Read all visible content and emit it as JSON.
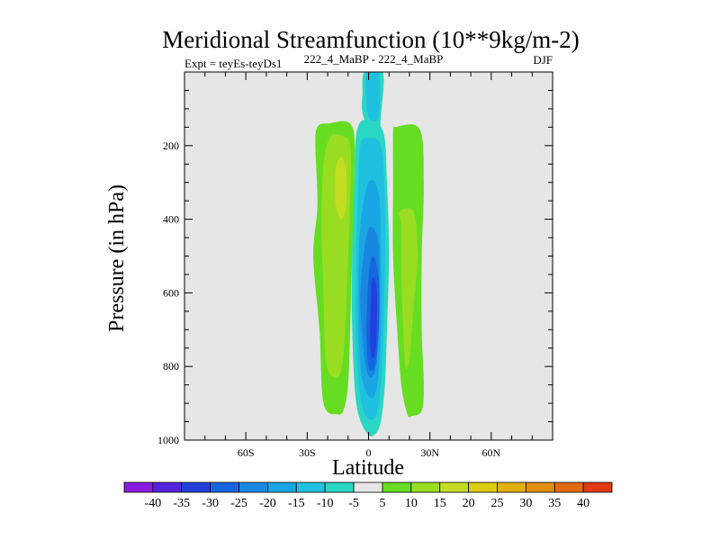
{
  "chart_data": {
    "type": "contour",
    "title": "Meridional Streamfunction (10**9kg/m-2)",
    "subtitle_left": "Expt = teyEs-teyDs1",
    "subtitle_center": "222_4_MaBP - 222_4_MaBP",
    "subtitle_right": "DJF",
    "xlabel": "Latitude",
    "ylabel": "Pressure (in hPa)",
    "xlim": [
      -90,
      90
    ],
    "ylim": [
      1000,
      0
    ],
    "x_ticks": [
      -60,
      -30,
      0,
      30,
      60
    ],
    "x_tick_labels": [
      "60S",
      "30S",
      "0",
      "30N",
      "60N"
    ],
    "y_ticks": [
      200,
      400,
      600,
      800,
      1000
    ],
    "y_tick_labels": [
      "200",
      "400",
      "600",
      "800",
      "1000"
    ],
    "colorbar": {
      "levels": [
        -40,
        -35,
        -30,
        -25,
        -20,
        -15,
        -10,
        -5,
        5,
        10,
        15,
        20,
        25,
        30,
        35,
        40
      ],
      "labels": [
        "-40",
        "-35",
        "-30",
        "-25",
        "-20",
        "-15",
        "-10",
        "-5",
        "5",
        "10",
        "15",
        "20",
        "25",
        "30",
        "35",
        "40"
      ],
      "colors": [
        "#8a1be0",
        "#5522dd",
        "#2340dd",
        "#1565dd",
        "#1887e0",
        "#1aa6e2",
        "#20c0e0",
        "#2ad6c4",
        "#e6e6e6",
        "#66dd22",
        "#99dd22",
        "#c3dd22",
        "#dccc10",
        "#e0b010",
        "#e08f10",
        "#e06a10",
        "#e03a10"
      ]
    },
    "regions": [
      {
        "name": "sh-positive-cell",
        "level_index": 9,
        "points": [
          [
            -20,
            140
          ],
          [
            -8,
            148
          ],
          [
            -7,
            300
          ],
          [
            -8,
            500
          ],
          [
            -9,
            700
          ],
          [
            -10,
            850
          ],
          [
            -12,
            915
          ],
          [
            -15,
            930
          ],
          [
            -22,
            900
          ],
          [
            -24,
            700
          ],
          [
            -27,
            500
          ],
          [
            -25,
            360
          ],
          [
            -26,
            200
          ],
          [
            -25,
            150
          ]
        ]
      },
      {
        "name": "sh-positive-core",
        "level_index": 10,
        "points": [
          [
            -15,
            170
          ],
          [
            -9,
            200
          ],
          [
            -9,
            350
          ],
          [
            -10,
            500
          ],
          [
            -11,
            650
          ],
          [
            -13,
            800
          ],
          [
            -17,
            830
          ],
          [
            -21,
            780
          ],
          [
            -22,
            600
          ],
          [
            -23,
            420
          ],
          [
            -22,
            250
          ],
          [
            -19,
            180
          ]
        ]
      },
      {
        "name": "sh-positive-max",
        "level_index": 11,
        "points": [
          [
            -13,
            230
          ],
          [
            -11,
            270
          ],
          [
            -11,
            360
          ],
          [
            -13,
            400
          ],
          [
            -16,
            360
          ],
          [
            -16,
            260
          ]
        ]
      },
      {
        "name": "nh-positive-cell",
        "level_index": 9,
        "points": [
          [
            13,
            150
          ],
          [
            25,
            155
          ],
          [
            27,
            300
          ],
          [
            26,
            500
          ],
          [
            26,
            700
          ],
          [
            27,
            850
          ],
          [
            26,
            920
          ],
          [
            21,
            935
          ],
          [
            19,
            930
          ],
          [
            16,
            850
          ],
          [
            14,
            700
          ],
          [
            12,
            500
          ],
          [
            12,
            300
          ],
          [
            12,
            160
          ]
        ]
      },
      {
        "name": "nh-positive-core",
        "level_index": 10,
        "points": [
          [
            15,
            380
          ],
          [
            22,
            380
          ],
          [
            24,
            500
          ],
          [
            22,
            640
          ],
          [
            20,
            780
          ],
          [
            18,
            800
          ],
          [
            17,
            700
          ],
          [
            16,
            550
          ],
          [
            16,
            420
          ]
        ]
      },
      {
        "name": "upper-tongue",
        "level_index": 7,
        "points": [
          [
            -2,
            0
          ],
          [
            7,
            0
          ],
          [
            6,
            120
          ],
          [
            5,
            160
          ],
          [
            0,
            150
          ],
          [
            -3,
            110
          ],
          [
            -3,
            60
          ]
        ]
      },
      {
        "name": "upper-tongue-core",
        "level_index": 6,
        "points": [
          [
            -1,
            0
          ],
          [
            5,
            0
          ],
          [
            5,
            120
          ],
          [
            1,
            130
          ],
          [
            -1,
            90
          ]
        ]
      },
      {
        "name": "equatorial-neg-1",
        "level_index": 7,
        "points": [
          [
            -2,
            130
          ],
          [
            7,
            160
          ],
          [
            9,
            300
          ],
          [
            10,
            500
          ],
          [
            9,
            700
          ],
          [
            8,
            850
          ],
          [
            6,
            950
          ],
          [
            3,
            985
          ],
          [
            -1,
            980
          ],
          [
            -6,
            900
          ],
          [
            -8,
            700
          ],
          [
            -8,
            500
          ],
          [
            -7,
            300
          ],
          [
            -6,
            170
          ]
        ]
      },
      {
        "name": "equatorial-neg-2",
        "level_index": 6,
        "points": [
          [
            -1,
            180
          ],
          [
            6,
            200
          ],
          [
            8,
            350
          ],
          [
            8,
            550
          ],
          [
            7,
            750
          ],
          [
            5,
            900
          ],
          [
            2,
            945
          ],
          [
            -3,
            910
          ],
          [
            -6,
            750
          ],
          [
            -6,
            500
          ],
          [
            -5,
            300
          ],
          [
            -4,
            200
          ]
        ]
      },
      {
        "name": "equatorial-neg-3",
        "level_index": 5,
        "points": [
          [
            0,
            300
          ],
          [
            5,
            330
          ],
          [
            6,
            500
          ],
          [
            6,
            700
          ],
          [
            4,
            860
          ],
          [
            0,
            880
          ],
          [
            -4,
            800
          ],
          [
            -5,
            600
          ],
          [
            -4,
            420
          ]
        ]
      },
      {
        "name": "equatorial-neg-4",
        "level_index": 4,
        "points": [
          [
            1,
            420
          ],
          [
            5,
            470
          ],
          [
            5,
            650
          ],
          [
            4,
            790
          ],
          [
            1,
            830
          ],
          [
            -2,
            780
          ],
          [
            -4,
            620
          ],
          [
            -2,
            480
          ]
        ]
      },
      {
        "name": "equatorial-neg-5",
        "level_index": 3,
        "points": [
          [
            2,
            500
          ],
          [
            5,
            560
          ],
          [
            5,
            700
          ],
          [
            3,
            800
          ],
          [
            0,
            800
          ],
          [
            -1,
            700
          ],
          [
            0,
            560
          ]
        ]
      },
      {
        "name": "equatorial-neg-6",
        "level_index": 2,
        "points": [
          [
            2,
            560
          ],
          [
            4,
            590
          ],
          [
            4,
            700
          ],
          [
            3,
            770
          ],
          [
            1,
            760
          ],
          [
            1,
            640
          ]
        ]
      }
    ]
  }
}
